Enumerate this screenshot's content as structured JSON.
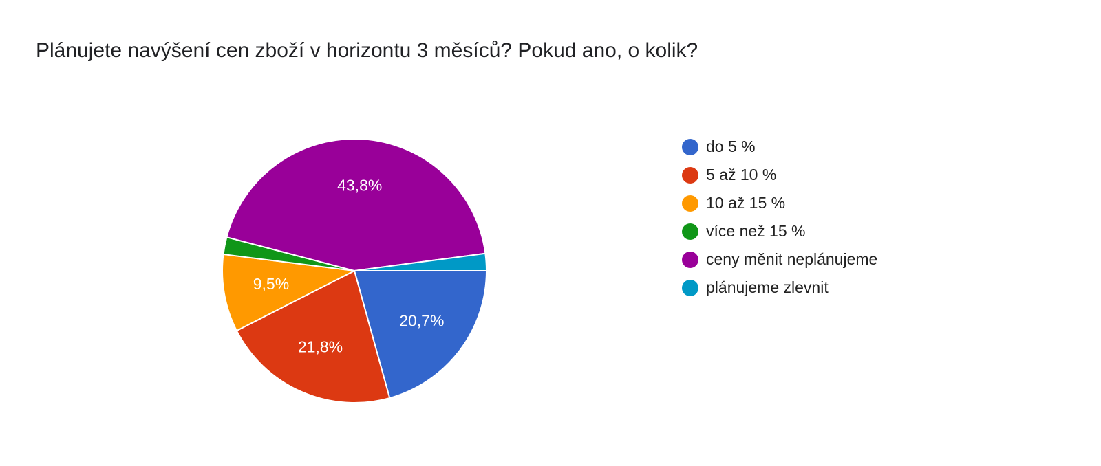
{
  "chart_data": {
    "type": "pie",
    "title": "Plánujete navýšení cen zboží v horizontu 3 měsíců? Pokud ano, o kolik?",
    "categories": [
      "do 5 %",
      "5 až 10 %",
      "10 až 15 %",
      "více než 15 %",
      "ceny měnit neplánujeme",
      "plánujeme zlevnit"
    ],
    "values": [
      20.7,
      21.8,
      9.5,
      2.1,
      43.8,
      2.1
    ],
    "value_labels": [
      "20,7%",
      "21,8%",
      "9,5%",
      null,
      "43,8%",
      null
    ],
    "colors": [
      "#3366cc",
      "#dc3912",
      "#ff9900",
      "#109618",
      "#990099",
      "#0099c6"
    ],
    "legend": "right"
  }
}
